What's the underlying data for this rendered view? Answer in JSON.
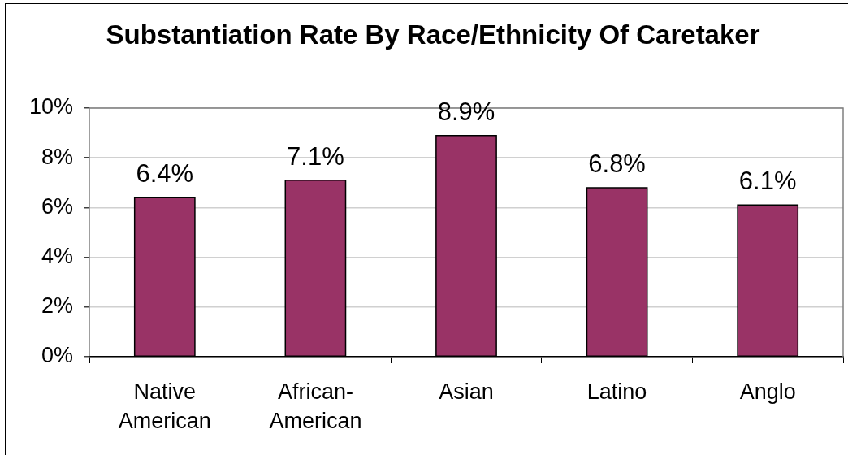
{
  "chart_data": {
    "type": "bar",
    "title": "Substantiation Rate By Race/Ethnicity Of Caretaker",
    "categories": [
      "Native American",
      "African-American",
      "Asian",
      "Latino",
      "Anglo"
    ],
    "values": [
      6.4,
      7.1,
      8.9,
      6.8,
      6.1
    ],
    "value_labels": [
      "6.4%",
      "7.1%",
      "8.9%",
      "6.8%",
      "6.1%"
    ],
    "color": "#993366",
    "ylim": [
      0,
      10
    ],
    "yticks": [
      {
        "value": 0,
        "label": "0%"
      },
      {
        "value": 2,
        "label": "2%"
      },
      {
        "value": 4,
        "label": "4%"
      },
      {
        "value": 6,
        "label": "6%"
      },
      {
        "value": 8,
        "label": "8%"
      },
      {
        "value": 10,
        "label": "10%"
      }
    ],
    "grid": "y"
  }
}
